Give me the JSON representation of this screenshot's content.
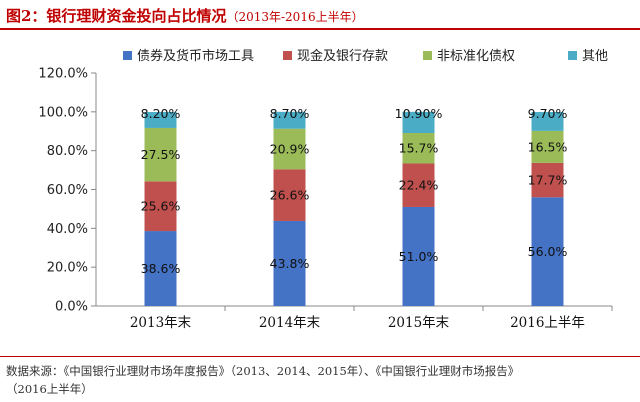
{
  "header": {
    "title": "图2：银行理财资金投向占比情况",
    "subtitle": "（2013年-2016上半年）"
  },
  "colors": {
    "accent": "#c00000",
    "series": [
      "#4472c4",
      "#c0504d",
      "#9bbb59",
      "#4bacc6"
    ]
  },
  "chart_data": {
    "type": "bar",
    "stacked": true,
    "categories": [
      "2013年末",
      "2014年末",
      "2015年末",
      "2016上半年"
    ],
    "series": [
      {
        "name": "债券及货币市场工具",
        "values": [
          38.6,
          43.8,
          51.0,
          56.0
        ],
        "labels": [
          "38.6%",
          "43.8%",
          "51.0%",
          "56.0%"
        ]
      },
      {
        "name": "现金及银行存款",
        "values": [
          25.6,
          26.6,
          22.4,
          17.7
        ],
        "labels": [
          "25.6%",
          "26.6%",
          "22.4%",
          "17.7%"
        ]
      },
      {
        "name": "非标准化债权",
        "values": [
          27.5,
          20.9,
          15.7,
          16.5
        ],
        "labels": [
          "27.5%",
          "20.9%",
          "15.7%",
          "16.5%"
        ]
      },
      {
        "name": "其他",
        "values": [
          8.2,
          8.7,
          10.9,
          9.7
        ],
        "labels": [
          "8.20%",
          "8.70%",
          "10.90%",
          "9.70%"
        ]
      }
    ],
    "ylim": [
      0,
      120
    ],
    "yticks": [
      "0.0%",
      "20.0%",
      "40.0%",
      "60.0%",
      "80.0%",
      "100.0%",
      "120.0%"
    ],
    "legend": "top",
    "grid": false
  },
  "footer": {
    "source_line1": "数据来源：《中国银行业理财市场年度报告》（2013、2014、2015年）、《中国银行业理财市场报告》",
    "source_line2": "（2016上半年）"
  }
}
